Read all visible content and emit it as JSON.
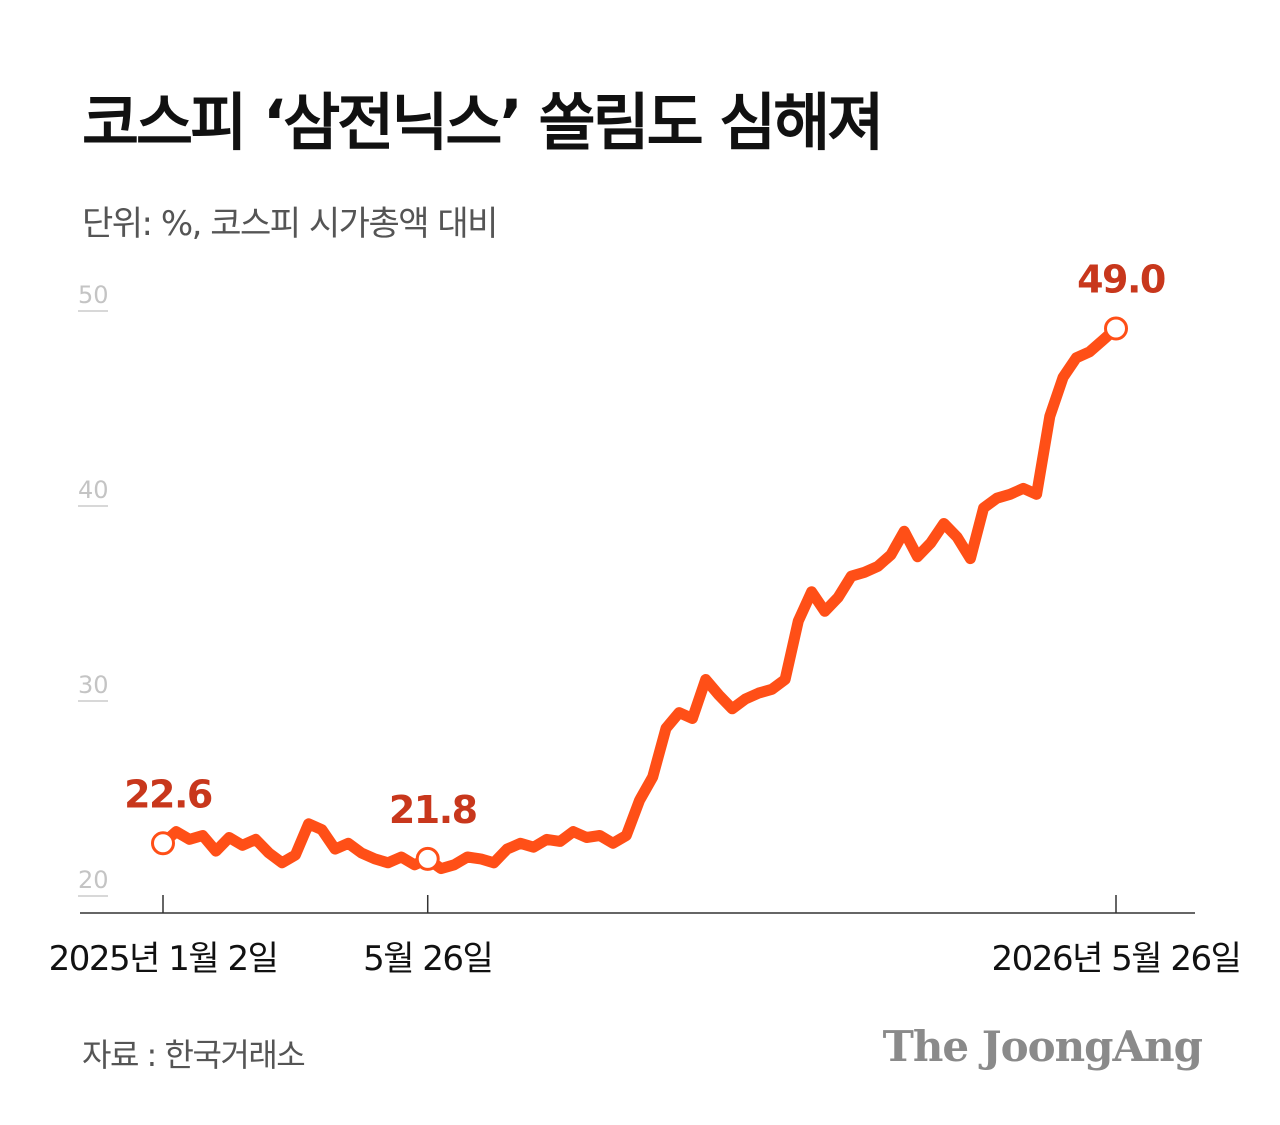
{
  "header": {
    "title": "코스피 ‘삼전닉스’ 쏠림도 심해져",
    "subtitle": "단위: %, 코스피 시가총액 대비"
  },
  "footer": {
    "source": "자료 : 한국거래소",
    "brand": "The JoongAng"
  },
  "colors": {
    "line": "#ff4f17",
    "annotation": "#c8371c",
    "axis": "#333333",
    "gridtick": "#cccccc"
  },
  "chart_data": {
    "type": "line",
    "title": "코스피 ‘삼전닉스’ 쏠림도 심해져",
    "ylabel": "",
    "xlabel": "",
    "ylim": [
      20,
      50
    ],
    "yticks": [
      20,
      30,
      40,
      50
    ],
    "xticks": [
      {
        "index": 0,
        "label": "2025년 1월 2일"
      },
      {
        "index": 20,
        "label": "5월 26일"
      },
      {
        "index": 72,
        "label": "2026년 5월 26일"
      }
    ],
    "annotations": [
      {
        "index": 0,
        "value": 22.6,
        "label": "22.6"
      },
      {
        "index": 20,
        "value": 21.8,
        "label": "21.8"
      },
      {
        "index": 72,
        "value": 49.0,
        "label": "49.0"
      }
    ],
    "series": [
      {
        "values": [
          22.6,
          23.2,
          22.8,
          23.0,
          22.2,
          22.9,
          22.5,
          22.8,
          22.1,
          21.6,
          22.0,
          23.6,
          23.3,
          22.3,
          22.6,
          22.1,
          21.8,
          21.6,
          21.9,
          21.5,
          21.8,
          21.3,
          21.5,
          21.9,
          21.8,
          21.6,
          22.3,
          22.6,
          22.4,
          22.8,
          22.7,
          23.2,
          22.9,
          23.0,
          22.6,
          23.0,
          24.8,
          26.0,
          28.5,
          29.3,
          29.0,
          31.0,
          30.2,
          29.5,
          30.0,
          30.3,
          30.5,
          31.0,
          34.0,
          35.5,
          34.5,
          35.2,
          36.3,
          36.5,
          36.8,
          37.4,
          38.6,
          37.3,
          38.0,
          39.0,
          38.3,
          37.2,
          39.8,
          40.3,
          40.5,
          40.8,
          40.5,
          44.5,
          46.5,
          47.5,
          47.8,
          48.4,
          49.0
        ]
      }
    ]
  }
}
